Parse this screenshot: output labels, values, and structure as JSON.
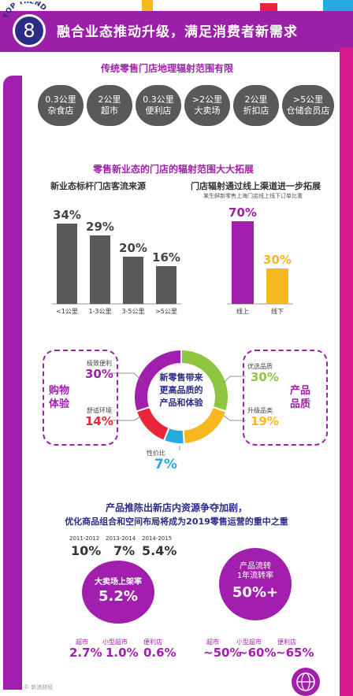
{
  "header": {
    "badge_text": "TOP TREND",
    "number": "8",
    "title": "融合业态推动升级，满足消费者新需求"
  },
  "section1": {
    "title": "传统零售门店地理辐射范围有限",
    "chips": [
      {
        "line1": "0.3公里",
        "line2": "杂食店"
      },
      {
        "line1": "2公里",
        "line2": "超市"
      },
      {
        "line1": "0.3公里",
        "line2": "便利店"
      },
      {
        "line1": ">2公里",
        "line2": "大卖场"
      },
      {
        "line1": "2公里",
        "line2": "折扣店"
      },
      {
        "line1": ">5公里",
        "line2": "仓储会员店"
      }
    ]
  },
  "section2": {
    "title": "零售新业态的门店的辐射范围大大拓展",
    "left_title": "新业态标杆门店客流来源",
    "right_title": "门店辐射通过线上渠道进一步拓展",
    "right_note": "某生鲜新零售上海门店线上线下订单比重"
  },
  "chart_data": [
    {
      "type": "bar",
      "title": "新业态标杆门店客流来源",
      "categories": [
        "<1公里",
        "1-3公里",
        "3-5公里",
        ">5公里"
      ],
      "values": [
        34,
        29,
        20,
        16
      ],
      "value_labels": [
        "34%",
        "29%",
        "20%",
        "16%"
      ],
      "unit": "%",
      "ylim": [
        0,
        40
      ],
      "colors": [
        "#595959"
      ]
    },
    {
      "type": "bar",
      "title": "门店辐射通过线上渠道进一步拓展",
      "categories": [
        "线上",
        "线下"
      ],
      "values": [
        70,
        30
      ],
      "value_labels": [
        "70%",
        "30%"
      ],
      "unit": "%",
      "ylim": [
        0,
        80
      ],
      "colors": [
        "#a21fae",
        "#f7b71f"
      ]
    },
    {
      "type": "pie",
      "title": "",
      "center_text": [
        "新零售带来",
        "更高品质的",
        "产品和体验"
      ],
      "slices": [
        {
          "label": "优选品质",
          "value": 30,
          "display": "30%",
          "color": "#8ec63f"
        },
        {
          "label": "升级品类",
          "value": 19,
          "display": "19%",
          "color": "#f7b71f"
        },
        {
          "label": "性价比",
          "value": 7,
          "display": "7%",
          "color": "#27aae1"
        },
        {
          "label": "舒适环境",
          "value": 14,
          "display": "14%",
          "color": "#e8253a"
        },
        {
          "label": "极致便利",
          "value": 30,
          "display": "30%",
          "color": "#a21fae"
        }
      ]
    }
  ],
  "section3": {
    "left_group_label": [
      "购物",
      "体验"
    ],
    "right_group_label": [
      "产品",
      "品质"
    ]
  },
  "section4": {
    "title_line1": "产品推陈出新店内资源争夺加剧，",
    "title_line2": "优化商品组合和空间布局将成为2019零售运营的重中之重",
    "years": [
      {
        "label": "2011-2012",
        "value": "10%"
      },
      {
        "label": "2013-2014",
        "value": "7%"
      },
      {
        "label": "2014-2015",
        "value": "5.4%"
      }
    ],
    "left_circle": {
      "label": "大卖场上架率",
      "value": "5.2%"
    },
    "right_circle": {
      "line1": "产品流转",
      "line2": "1年流转率",
      "value": "50%+"
    },
    "left_small": [
      {
        "label": "超市",
        "value": "2.7%"
      },
      {
        "label": "小型超市",
        "value": "1.0%"
      },
      {
        "label": "便利店",
        "value": "0.6%"
      }
    ],
    "right_small": [
      {
        "label": "超市",
        "value": "~50%"
      },
      {
        "label": "小型超市",
        "value": "~60%"
      },
      {
        "label": "便利店",
        "value": "~65%"
      }
    ]
  },
  "footer": {
    "credit": "© 新浪财经"
  },
  "colors": {
    "purple": "#a21fae",
    "navy": "#2c2b86",
    "gray": "#595959",
    "yellow": "#f7b71f",
    "pink": "#d7198e"
  }
}
